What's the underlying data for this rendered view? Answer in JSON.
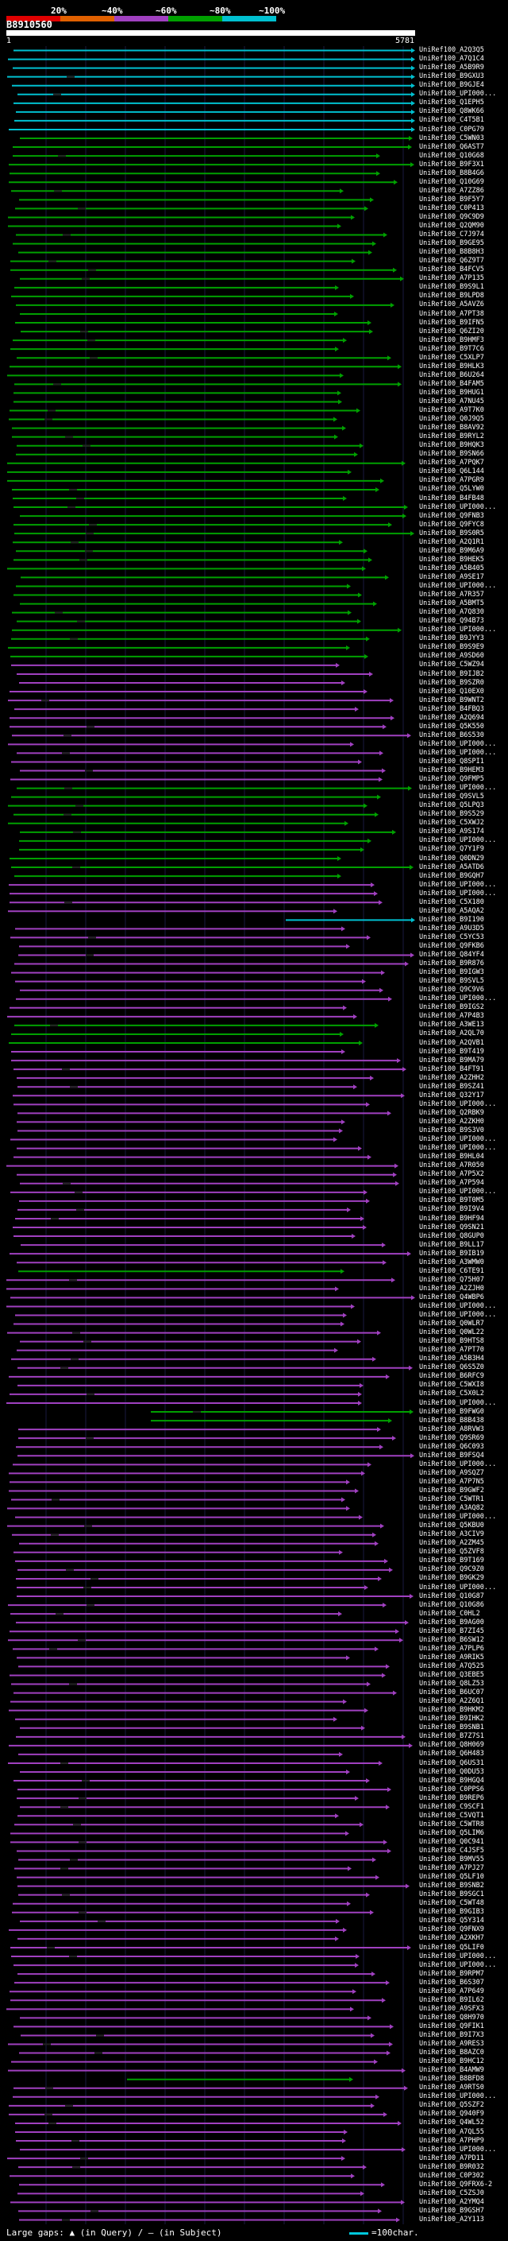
{
  "scale": {
    "labels": [
      "20%",
      "~40%",
      "~60%",
      "~80%",
      "~100%"
    ],
    "colors": [
      "#e00000",
      "#e06000",
      "#a040c0",
      "#00a000",
      "#00c0d0"
    ]
  },
  "query": {
    "name": "B8910560",
    "start": "1",
    "end": "5781"
  },
  "legend": {
    "large_gaps": "Large gaps: ▲ (in Query) / — (in Subject)",
    "scale_note": "=100char."
  },
  "hits": [
    {
      "id": "UniRef100_A2Q3Q5",
      "color": "#00c0d0"
    },
    {
      "id": "UniRef100_A7Q1C4",
      "color": "#00c0d0"
    },
    {
      "id": "UniRef100_A5B9R9",
      "color": "#00c0d0"
    },
    {
      "id": "UniRef100_B9GXU3",
      "color": "#00c0d0"
    },
    {
      "id": "UniRef100_B9GJE4",
      "color": "#00c0d0"
    },
    {
      "id": "UniRef100_UPI000...",
      "color": "#00c0d0"
    },
    {
      "id": "UniRef100_Q1EPH5",
      "color": "#00c0d0"
    },
    {
      "id": "UniRef100_Q8WK66",
      "color": "#00c0d0"
    },
    {
      "id": "UniRef100_C4T5B1",
      "color": "#00c0d0"
    },
    {
      "id": "UniRef100_C0PG79",
      "color": "#00c0d0"
    },
    {
      "id": "UniRef100_C5WN03",
      "color": "#00a000"
    },
    {
      "id": "UniRef100_Q6AST7",
      "color": "#00a000"
    },
    {
      "id": "UniRef100_Q10G68",
      "color": "#00a000"
    },
    {
      "id": "UniRef100_B9F3X1",
      "color": "#00a000"
    },
    {
      "id": "UniRef100_B8B4G6",
      "color": "#00a000"
    },
    {
      "id": "UniRef100_Q10G69",
      "color": "#00a000"
    },
    {
      "id": "UniRef100_A7ZZ86",
      "color": "#00a000"
    },
    {
      "id": "UniRef100_B9F5Y7",
      "color": "#00a000"
    },
    {
      "id": "UniRef100_C0P413",
      "color": "#00a000"
    },
    {
      "id": "UniRef100_Q9C9D9",
      "color": "#00a000"
    },
    {
      "id": "UniRef100_Q2QM90",
      "color": "#00a000"
    },
    {
      "id": "UniRef100_C7J974",
      "color": "#00a000"
    },
    {
      "id": "UniRef100_B9GE95",
      "color": "#00a000"
    },
    {
      "id": "UniRef100_B8B8H3",
      "color": "#00a000"
    },
    {
      "id": "UniRef100_Q6Z9T7",
      "color": "#00a000"
    },
    {
      "id": "UniRef100_B4FCV5",
      "color": "#00a000"
    },
    {
      "id": "UniRef100_A7P135",
      "color": "#00a000"
    },
    {
      "id": "UniRef100_B9S9L1",
      "color": "#00a000"
    },
    {
      "id": "UniRef100_B9LPD8",
      "color": "#00a000"
    },
    {
      "id": "UniRef100_A5AVZ6",
      "color": "#00a000"
    },
    {
      "id": "UniRef100_A7PT38",
      "color": "#00a000"
    },
    {
      "id": "UniRef100_B9IFN5",
      "color": "#00a000"
    },
    {
      "id": "UniRef100_Q6ZI20",
      "color": "#00a000"
    },
    {
      "id": "UniRef100_B9HMF3",
      "color": "#00a000"
    },
    {
      "id": "UniRef100_B9T7C6",
      "color": "#00a000"
    },
    {
      "id": "UniRef100_C5XLP7",
      "color": "#00a000"
    },
    {
      "id": "UniRef100_B9HLK3",
      "color": "#00a000"
    },
    {
      "id": "UniRef100_B6U264",
      "color": "#00a000"
    },
    {
      "id": "UniRef100_B4FAM5",
      "color": "#00a000"
    },
    {
      "id": "UniRef100_B9HUG1",
      "color": "#00a000"
    },
    {
      "id": "UniRef100_A7NU45",
      "color": "#00a000"
    },
    {
      "id": "UniRef100_A9T7K0",
      "color": "#00a000"
    },
    {
      "id": "UniRef100_Q0J9Q5",
      "color": "#00a000"
    },
    {
      "id": "UniRef100_B8AV92",
      "color": "#00a000"
    },
    {
      "id": "UniRef100_B9RYL2",
      "color": "#00a000"
    },
    {
      "id": "UniRef100_B9HQK3",
      "color": "#00a000"
    },
    {
      "id": "UniRef100_B9SN66",
      "color": "#00a000"
    },
    {
      "id": "UniRef100_A7PQK7",
      "color": "#00a000"
    },
    {
      "id": "UniRef100_Q6L144",
      "color": "#00a000"
    },
    {
      "id": "UniRef100_A7PGR9",
      "color": "#00a000"
    },
    {
      "id": "UniRef100_Q5LYW0",
      "color": "#00a000"
    },
    {
      "id": "UniRef100_B4FB48",
      "color": "#00a000"
    },
    {
      "id": "UniRef100_UPI000...",
      "color": "#00a000"
    },
    {
      "id": "UniRef100_Q9FNB3",
      "color": "#00a000"
    },
    {
      "id": "UniRef100_Q9FYC8",
      "color": "#00a000"
    },
    {
      "id": "UniRef100_B9S0R5",
      "color": "#00a000"
    },
    {
      "id": "UniRef100_A2Q1R1",
      "color": "#00a000"
    },
    {
      "id": "UniRef100_B9M6A9",
      "color": "#00a000"
    },
    {
      "id": "UniRef100_B9HEK5",
      "color": "#00a000"
    },
    {
      "id": "UniRef100_A5B405",
      "color": "#00a000"
    },
    {
      "id": "UniRef100_A9SE17",
      "color": "#00a000"
    },
    {
      "id": "UniRef100_UPI000...",
      "color": "#00a000"
    },
    {
      "id": "UniRef100_A7R357",
      "color": "#00a000"
    },
    {
      "id": "UniRef100_A5BMT5",
      "color": "#00a000"
    },
    {
      "id": "UniRef100_A7Q830",
      "color": "#00a000"
    },
    {
      "id": "UniRef100_Q94B73",
      "color": "#00a000"
    },
    {
      "id": "UniRef100_UPI000...",
      "color": "#00a000"
    },
    {
      "id": "UniRef100_B9JYY3",
      "color": "#00a000"
    },
    {
      "id": "UniRef100_B9S9E9",
      "color": "#00a000"
    },
    {
      "id": "UniRef100_A9SD60",
      "color": "#00a000"
    },
    {
      "id": "UniRef100_C5WZ94",
      "color": "#a040c0"
    },
    {
      "id": "UniRef100_B9IJB2",
      "color": "#a040c0"
    },
    {
      "id": "UniRef100_B9SZR0",
      "color": "#a040c0"
    },
    {
      "id": "UniRef100_Q10EX0",
      "color": "#a040c0"
    },
    {
      "id": "UniRef100_B9WNT2",
      "color": "#a040c0"
    },
    {
      "id": "UniRef100_B4FBQ3",
      "color": "#a040c0"
    },
    {
      "id": "UniRef100_A2Q694",
      "color": "#a040c0"
    },
    {
      "id": "UniRef100_Q5K550",
      "color": "#a040c0"
    },
    {
      "id": "UniRef100_B6S530",
      "color": "#a040c0"
    },
    {
      "id": "UniRef100_UPI000...",
      "color": "#a040c0"
    },
    {
      "id": "UniRef100_UPI000...",
      "color": "#a040c0"
    },
    {
      "id": "UniRef100_Q8SPI1",
      "color": "#a040c0"
    },
    {
      "id": "UniRef100_B9HEM3",
      "color": "#a040c0"
    },
    {
      "id": "UniRef100_Q9FMP5",
      "color": "#a040c0"
    },
    {
      "id": "UniRef100_UPI000...",
      "color": "#00a000"
    },
    {
      "id": "UniRef100_Q9SVL5",
      "color": "#00a000"
    },
    {
      "id": "UniRef100_Q5LPQ3",
      "color": "#00a000"
    },
    {
      "id": "UniRef100_B9S529",
      "color": "#00a000"
    },
    {
      "id": "UniRef100_C5XWJ2",
      "color": "#00a000"
    },
    {
      "id": "UniRef100_A9S174",
      "color": "#00a000"
    },
    {
      "id": "UniRef100_UPI000...",
      "color": "#00a000"
    },
    {
      "id": "UniRef100_Q7Y1F9",
      "color": "#00a000"
    },
    {
      "id": "UniRef100_Q0DN29",
      "color": "#00a000"
    },
    {
      "id": "UniRef100_A5ATD6",
      "color": "#00a000"
    },
    {
      "id": "UniRef100_B9GQH7",
      "color": "#00a000"
    },
    {
      "id": "UniRef100_UPI000...",
      "color": "#a040c0"
    },
    {
      "id": "UniRef100_UPI000...",
      "color": "#a040c0"
    },
    {
      "id": "UniRef100_C5X180",
      "color": "#a040c0"
    },
    {
      "id": "UniRef100_A5AQA2",
      "color": "#a040c0"
    },
    {
      "id": "UniRef100_B9I190",
      "color": "#00c0d0"
    },
    {
      "id": "UniRef100_A9U3D5",
      "color": "#a040c0"
    },
    {
      "id": "UniRef100_C5YC53",
      "color": "#a040c0"
    },
    {
      "id": "UniRef100_Q9FKB6",
      "color": "#a040c0"
    },
    {
      "id": "UniRef100_Q84YF4",
      "color": "#a040c0"
    },
    {
      "id": "UniRef100_B9R876",
      "color": "#a040c0"
    },
    {
      "id": "UniRef100_B9IGW3",
      "color": "#a040c0"
    },
    {
      "id": "UniRef100_B9SVL5",
      "color": "#a040c0"
    },
    {
      "id": "UniRef100_Q9C9V6",
      "color": "#a040c0"
    },
    {
      "id": "UniRef100_UPI000...",
      "color": "#a040c0"
    },
    {
      "id": "UniRef100_B9IGS2",
      "color": "#a040c0"
    },
    {
      "id": "UniRef100_A7P4B3",
      "color": "#a040c0"
    },
    {
      "id": "UniRef100_A3WE13",
      "color": "#00a000"
    },
    {
      "id": "UniRef100_A2QL70",
      "color": "#00a000"
    },
    {
      "id": "UniRef100_A2QVB1",
      "color": "#00a000"
    },
    {
      "id": "UniRef100_B9T419",
      "color": "#a040c0"
    },
    {
      "id": "UniRef100_B9MA79",
      "color": "#a040c0"
    },
    {
      "id": "UniRef100_B4FT91",
      "color": "#a040c0"
    },
    {
      "id": "UniRef100_A2ZHH2",
      "color": "#a040c0"
    },
    {
      "id": "UniRef100_B9SZ41",
      "color": "#a040c0"
    },
    {
      "id": "UniRef100_Q32Y17",
      "color": "#a040c0"
    },
    {
      "id": "UniRef100_UPI000...",
      "color": "#a040c0"
    },
    {
      "id": "UniRef100_Q2RBK9",
      "color": "#a040c0"
    },
    {
      "id": "UniRef100_A2ZKH0",
      "color": "#a040c0"
    },
    {
      "id": "UniRef100_B9S3V0",
      "color": "#a040c0"
    },
    {
      "id": "UniRef100_UPI000...",
      "color": "#a040c0"
    },
    {
      "id": "UniRef100_UPI000...",
      "color": "#a040c0"
    },
    {
      "id": "UniRef100_B9HL04",
      "color": "#a040c0"
    },
    {
      "id": "UniRef100_A7R050",
      "color": "#a040c0"
    },
    {
      "id": "UniRef100_A7P5X2",
      "color": "#a040c0"
    },
    {
      "id": "UniRef100_A7P594",
      "color": "#a040c0"
    },
    {
      "id": "UniRef100_UPI000...",
      "color": "#a040c0"
    },
    {
      "id": "UniRef100_B9T0M5",
      "color": "#a040c0"
    },
    {
      "id": "UniRef100_B9I9V4",
      "color": "#a040c0"
    },
    {
      "id": "UniRef100_B9HF94",
      "color": "#a040c0"
    },
    {
      "id": "UniRef100_Q9SN21",
      "color": "#a040c0"
    },
    {
      "id": "UniRef100_Q8GUP0",
      "color": "#a040c0"
    },
    {
      "id": "UniRef100_B9LL17",
      "color": "#a040c0"
    },
    {
      "id": "UniRef100_B9IB19",
      "color": "#a040c0"
    },
    {
      "id": "UniRef100_A3WMW0",
      "color": "#a040c0"
    },
    {
      "id": "UniRef100_C6TE91",
      "color": "#00a000"
    },
    {
      "id": "UniRef100_Q75H07",
      "color": "#a040c0"
    },
    {
      "id": "UniRef100_A2ZJH0",
      "color": "#a040c0"
    },
    {
      "id": "UniRef100_Q4WBP6",
      "color": "#a040c0"
    },
    {
      "id": "UniRef100_UPI000...",
      "color": "#a040c0"
    },
    {
      "id": "UniRef100_UPI000...",
      "color": "#a040c0"
    },
    {
      "id": "UniRef100_Q0WLR7",
      "color": "#a040c0"
    },
    {
      "id": "UniRef100_Q0WL22",
      "color": "#a040c0"
    },
    {
      "id": "UniRef100_B9HTS8",
      "color": "#a040c0"
    },
    {
      "id": "UniRef100_A7PT70",
      "color": "#a040c0"
    },
    {
      "id": "UniRef100_A5B3H4",
      "color": "#a040c0"
    },
    {
      "id": "UniRef100_Q6S5Z0",
      "color": "#a040c0"
    },
    {
      "id": "UniRef100_B6RFC9",
      "color": "#a040c0"
    },
    {
      "id": "UniRef100_C5WXI8",
      "color": "#a040c0"
    },
    {
      "id": "UniRef100_C5X0L2",
      "color": "#a040c0"
    },
    {
      "id": "UniRef100_UPI000...",
      "color": "#a040c0"
    },
    {
      "id": "UniRef100_B9FWG0",
      "color": "#00a000"
    },
    {
      "id": "UniRef100_B8B438",
      "color": "#00a000"
    },
    {
      "id": "UniRef100_A8RVW3",
      "color": "#a040c0"
    },
    {
      "id": "UniRef100_Q9SR69",
      "color": "#a040c0"
    },
    {
      "id": "UniRef100_Q6C093",
      "color": "#a040c0"
    },
    {
      "id": "UniRef100_B9FSQ4",
      "color": "#a040c0"
    },
    {
      "id": "UniRef100_UPI000...",
      "color": "#a040c0"
    },
    {
      "id": "UniRef100_A9SQZ7",
      "color": "#a040c0"
    },
    {
      "id": "UniRef100_A7P7N5",
      "color": "#a040c0"
    },
    {
      "id": "UniRef100_B9GWF2",
      "color": "#a040c0"
    },
    {
      "id": "UniRef100_C5WTR1",
      "color": "#a040c0"
    },
    {
      "id": "UniRef100_A3AQ82",
      "color": "#a040c0"
    },
    {
      "id": "UniRef100_UPI000...",
      "color": "#a040c0"
    },
    {
      "id": "UniRef100_Q5KBU0",
      "color": "#a040c0"
    },
    {
      "id": "UniRef100_A3CIV9",
      "color": "#a040c0"
    },
    {
      "id": "UniRef100_A2ZM45",
      "color": "#a040c0"
    },
    {
      "id": "UniRef100_Q5ZVF8",
      "color": "#a040c0"
    },
    {
      "id": "UniRef100_B9T169",
      "color": "#a040c0"
    },
    {
      "id": "UniRef100_Q9C9Z0",
      "color": "#a040c0"
    },
    {
      "id": "UniRef100_B9GK29",
      "color": "#a040c0"
    },
    {
      "id": "UniRef100_UPI000...",
      "color": "#a040c0"
    },
    {
      "id": "UniRef100_Q10G87",
      "color": "#a040c0"
    },
    {
      "id": "UniRef100_Q10G86",
      "color": "#a040c0"
    },
    {
      "id": "UniRef100_C0HL2",
      "color": "#a040c0"
    },
    {
      "id": "UniRef100_B9AG00",
      "color": "#a040c0"
    },
    {
      "id": "UniRef100_B7ZI45",
      "color": "#a040c0"
    },
    {
      "id": "UniRef100_B6SW12",
      "color": "#a040c0"
    },
    {
      "id": "UniRef100_A7PLP6",
      "color": "#a040c0"
    },
    {
      "id": "UniRef100_A9RIK5",
      "color": "#a040c0"
    },
    {
      "id": "UniRef100_A7Q525",
      "color": "#a040c0"
    },
    {
      "id": "UniRef100_Q3EBE5",
      "color": "#a040c0"
    },
    {
      "id": "UniRef100_Q8LZ53",
      "color": "#a040c0"
    },
    {
      "id": "UniRef100_B6UC07",
      "color": "#a040c0"
    },
    {
      "id": "UniRef100_A2Z6Q1",
      "color": "#a040c0"
    },
    {
      "id": "UniRef100_B9HKM2",
      "color": "#a040c0"
    },
    {
      "id": "UniRef100_B9IHK2",
      "color": "#a040c0"
    },
    {
      "id": "UniRef100_B9SNB1",
      "color": "#a040c0"
    },
    {
      "id": "UniRef100_B7Z7S1",
      "color": "#a040c0"
    },
    {
      "id": "UniRef100_Q8H069",
      "color": "#a040c0"
    },
    {
      "id": "UniRef100_Q6H483",
      "color": "#a040c0"
    },
    {
      "id": "UniRef100_Q6US31",
      "color": "#a040c0"
    },
    {
      "id": "UniRef100_Q0DU53",
      "color": "#a040c0"
    },
    {
      "id": "UniRef100_B9HGQ4",
      "color": "#a040c0"
    },
    {
      "id": "UniRef100_C0PPS6",
      "color": "#a040c0"
    },
    {
      "id": "UniRef100_B9REP6",
      "color": "#a040c0"
    },
    {
      "id": "UniRef100_C9SCF1",
      "color": "#a040c0"
    },
    {
      "id": "UniRef100_C5VQT1",
      "color": "#a040c0"
    },
    {
      "id": "UniRef100_C5WTR8",
      "color": "#a040c0"
    },
    {
      "id": "UniRef100_Q5LIM6",
      "color": "#a040c0"
    },
    {
      "id": "UniRef100_Q0C941",
      "color": "#a040c0"
    },
    {
      "id": "UniRef100_C4JSF5",
      "color": "#a040c0"
    },
    {
      "id": "UniRef100_B9MV55",
      "color": "#a040c0"
    },
    {
      "id": "UniRef100_A7PJ27",
      "color": "#a040c0"
    },
    {
      "id": "UniRef100_Q5LF10",
      "color": "#a040c0"
    },
    {
      "id": "UniRef100_B9SNB2",
      "color": "#a040c0"
    },
    {
      "id": "UniRef100_B9SGC1",
      "color": "#a040c0"
    },
    {
      "id": "UniRef100_C5WT48",
      "color": "#a040c0"
    },
    {
      "id": "UniRef100_B9GIB3",
      "color": "#a040c0"
    },
    {
      "id": "UniRef100_Q5Y314",
      "color": "#a040c0"
    },
    {
      "id": "UniRef100_Q9FNX9",
      "color": "#a040c0"
    },
    {
      "id": "UniRef100_A2XKH7",
      "color": "#a040c0"
    },
    {
      "id": "UniRef100_Q5LIF0",
      "color": "#a040c0"
    },
    {
      "id": "UniRef100_UPI000...",
      "color": "#a040c0"
    },
    {
      "id": "UniRef100_UPI000...",
      "color": "#a040c0"
    },
    {
      "id": "UniRef100_B9RPM7",
      "color": "#a040c0"
    },
    {
      "id": "UniRef100_B6S307",
      "color": "#a040c0"
    },
    {
      "id": "UniRef100_A7P649",
      "color": "#a040c0"
    },
    {
      "id": "UniRef100_B9IL62",
      "color": "#a040c0"
    },
    {
      "id": "UniRef100_A9SFX3",
      "color": "#a040c0"
    },
    {
      "id": "UniRef100_Q8H970",
      "color": "#a040c0"
    },
    {
      "id": "UniRef100_Q9FIK1",
      "color": "#a040c0"
    },
    {
      "id": "UniRef100_B9I7X3",
      "color": "#a040c0"
    },
    {
      "id": "UniRef100_A9RES3",
      "color": "#a040c0"
    },
    {
      "id": "UniRef100_B8AZC0",
      "color": "#a040c0"
    },
    {
      "id": "UniRef100_B9HC12",
      "color": "#a040c0"
    },
    {
      "id": "UniRef100_B4AMW9",
      "color": "#a040c0"
    },
    {
      "id": "UniRef100_B8BFD8",
      "color": "#00a000"
    },
    {
      "id": "UniRef100_A9RTS0",
      "color": "#a040c0"
    },
    {
      "id": "UniRef100_UPI000...",
      "color": "#a040c0"
    },
    {
      "id": "UniRef100_Q5SZF2",
      "color": "#a040c0"
    },
    {
      "id": "UniRef100_Q940F9",
      "color": "#a040c0"
    },
    {
      "id": "UniRef100_Q4WL52",
      "color": "#a040c0"
    },
    {
      "id": "UniRef100_A7QL55",
      "color": "#a040c0"
    },
    {
      "id": "UniRef100_A7PHP9",
      "color": "#a040c0"
    },
    {
      "id": "UniRef100_UPI000...",
      "color": "#a040c0"
    },
    {
      "id": "UniRef100_A7PD11",
      "color": "#a040c0"
    },
    {
      "id": "UniRef100_B9R032",
      "color": "#a040c0"
    },
    {
      "id": "UniRef100_C0P302",
      "color": "#a040c0"
    },
    {
      "id": "UniRef100_Q9FRX6-2",
      "color": "#a040c0"
    },
    {
      "id": "UniRef100_C5ZSJ0",
      "color": "#a040c0"
    },
    {
      "id": "UniRef100_A2YMQ4",
      "color": "#a040c0"
    },
    {
      "id": "UniRef100_B9GSH7",
      "color": "#a040c0"
    },
    {
      "id": "UniRef100_A2Y113",
      "color": "#a040c0"
    }
  ]
}
